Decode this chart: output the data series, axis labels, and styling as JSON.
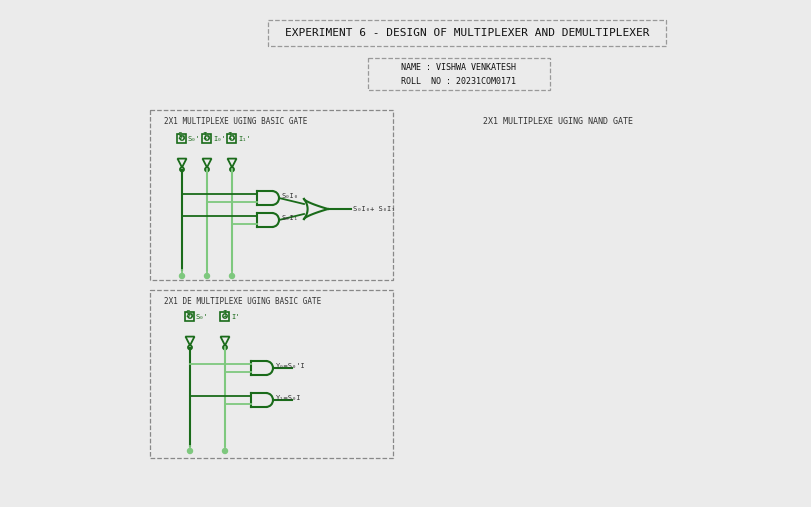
{
  "title": "EXPERIMENT 6 - DESIGN OF MULTIPLEXER AND DEMULTIPLEXER",
  "name_line1": "NAME : VISHWA VENKATESH",
  "name_line2": "ROLL  NO : 20231COM0171",
  "mux_title": "2X1 MULTIPLEXE UGING BASIC GATE",
  "demux_title": "2X1 DE MULTIPLEXE UGING BASIC GATE",
  "nand_title": "2X1 MULTIPLEXE UGING NAND GATE",
  "bg_color": "#ebebeb",
  "dark_green": "#1a6b1a",
  "mid_green": "#2e8b2e",
  "light_green": "#7ec87e",
  "box_border": "#aaaaaa",
  "text_color": "#333333",
  "title_color": "#111111"
}
